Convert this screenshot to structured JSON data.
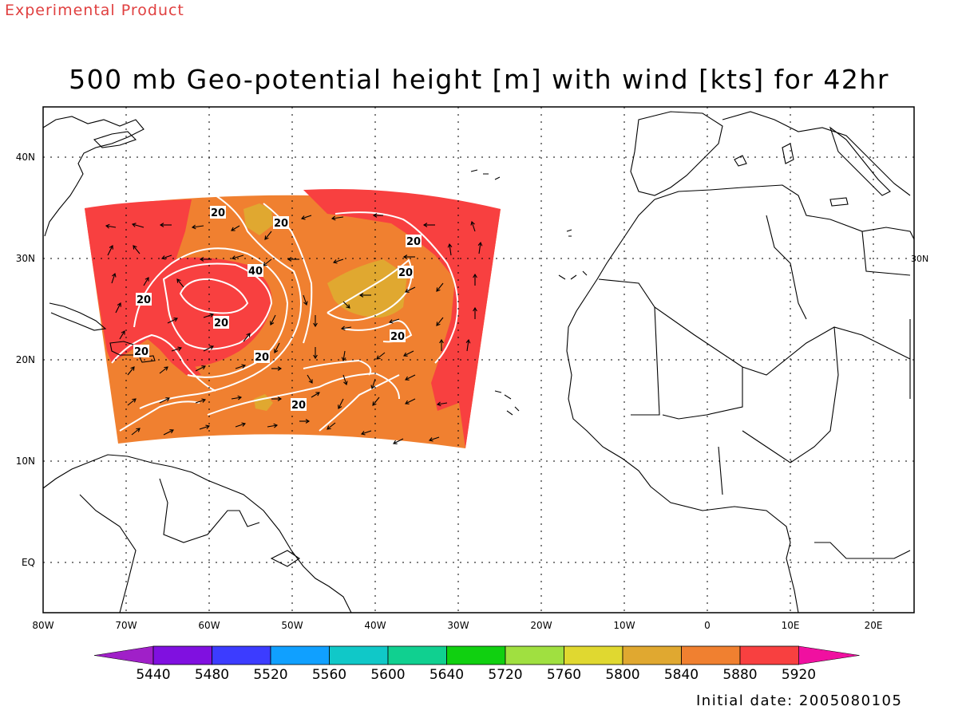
{
  "header": {
    "corner_label": "Experimental Product",
    "title": "500 mb Geo-potential height [m] with wind [kts] for 42hr"
  },
  "footer": {
    "initial_date": "Initial date: 2005080105"
  },
  "map": {
    "lon_range": [
      -80,
      25
    ],
    "lat_range": [
      -5,
      45
    ],
    "lon_ticks": [
      "80W",
      "70W",
      "60W",
      "50W",
      "40W",
      "30W",
      "20W",
      "10W",
      "0",
      "10E",
      "20E"
    ],
    "lat_ticks": [
      "EQ",
      "10N",
      "20N",
      "30N",
      "40N"
    ],
    "gridlines": "dotted",
    "colors": {
      "coast": "#000000",
      "contour": "#ffffff",
      "arrow": "#000000",
      "grid": "#000000"
    },
    "contour_labels": [
      "20",
      "20",
      "20",
      "20",
      "20",
      "40",
      "20",
      "20",
      "20",
      "20",
      "20"
    ],
    "colorbar": {
      "labels": [
        "5440",
        "5480",
        "5520",
        "5560",
        "5600",
        "5640",
        "5720",
        "5760",
        "5800",
        "5840",
        "5880",
        "5920"
      ],
      "colors": [
        "#a020c8",
        "#8010e0",
        "#3c3cff",
        "#10a0ff",
        "#10c8c8",
        "#10d090",
        "#10d010",
        "#a0e040",
        "#e0d830",
        "#e0a830",
        "#f08030",
        "#f84040",
        "#f010a0"
      ]
    },
    "field_colors": {
      "ridge_5920": "#f84040",
      "main_5880": "#f08030",
      "trough_5840": "#e0a830"
    }
  }
}
